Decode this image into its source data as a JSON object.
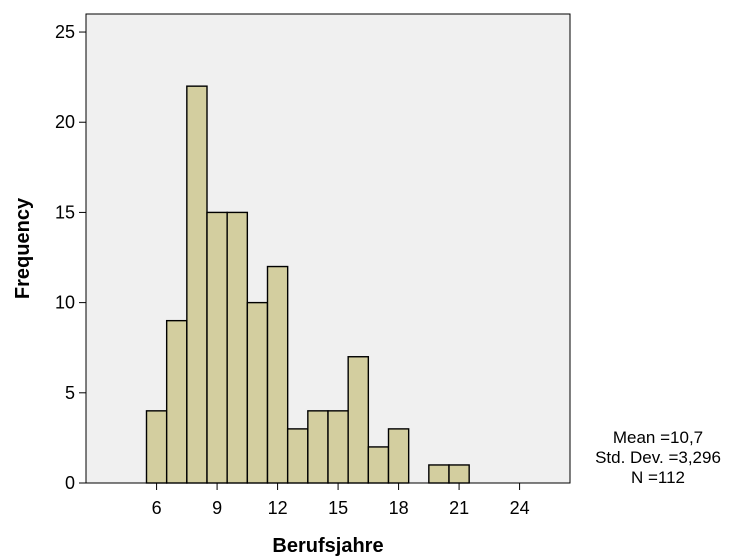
{
  "chart_data": {
    "type": "bar",
    "subtype": "histogram",
    "xlabel": "Berufsjahre",
    "ylabel": "Frequency",
    "bin_width": 1,
    "bin_starts": [
      5.5,
      6.5,
      7.5,
      8.5,
      9.5,
      10.5,
      11.5,
      12.5,
      13.5,
      14.5,
      15.5,
      16.5,
      17.5,
      19.5,
      20.5
    ],
    "values": [
      4,
      9,
      22,
      15,
      15,
      10,
      12,
      3,
      4,
      4,
      7,
      2,
      3,
      1,
      1
    ],
    "xlim": [
      2.5,
      26.5
    ],
    "ylim": [
      0,
      26
    ],
    "x_ticks": [
      6,
      9,
      12,
      15,
      18,
      21,
      24
    ],
    "y_ticks": [
      0,
      5,
      10,
      15,
      20,
      25
    ],
    "grid": false,
    "colors": {
      "plot_background": "#f0f0f0",
      "bar_fill": "#d3ce9f",
      "bar_stroke": "#000000"
    },
    "stats": [
      "Mean =10,7",
      "Std. Dev. =3,296",
      "N =112"
    ]
  }
}
